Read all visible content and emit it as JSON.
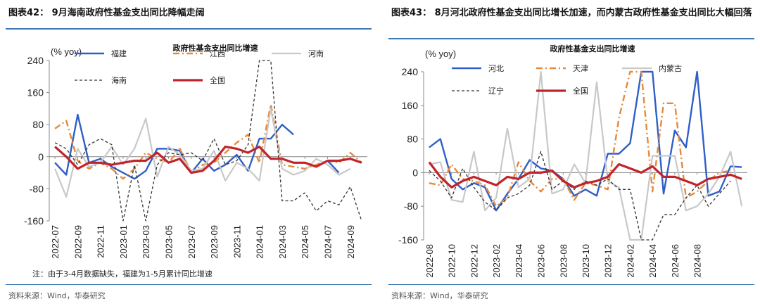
{
  "panels": [
    {
      "figure_title": "图表42：  9月海南政府性基金支出同比降幅走阔",
      "note": "注：由于3-4月数据缺失，福建为1-5月累计同比增速",
      "source": "资料来源：Wind，华泰研究",
      "legend_rows": [
        [
          "福建",
          "江西",
          "河南"
        ],
        [
          "海南",
          "全国"
        ]
      ],
      "chart_data": {
        "type": "line",
        "title": "政府性基金支出同比增速",
        "ylabel": "(% yoy)",
        "ylim": [
          -160,
          240
        ],
        "yticks": [
          -160,
          -80,
          0,
          80,
          160,
          240
        ],
        "x_tick_labels": [
          "2022-07",
          "2022-09",
          "2022-11",
          "2023-01",
          "2023-03",
          "2023-05",
          "2023-07",
          "2023-09",
          "2023-11",
          "2024-01",
          "2024-03",
          "2024-05",
          "2024-07",
          "2024-09"
        ],
        "series": [
          {
            "name": "福建",
            "color": "#2f5fc7",
            "style": "solid",
            "width": 2.4,
            "values": [
              -15,
              -45,
              105,
              -15,
              -5,
              -25,
              -40,
              -55,
              -35,
              20,
              20,
              15,
              -40,
              -5,
              -35,
              -20,
              5,
              -35,
              45,
              45,
              80,
              55,
              null,
              null,
              -10,
              -40,
              null,
              null
            ]
          },
          {
            "name": "江西",
            "color": "#e8893a",
            "style": "dashdot",
            "width": 2.4,
            "values": [
              70,
              90,
              -10,
              -30,
              -15,
              -30,
              -55,
              -30,
              10,
              -5,
              -15,
              20,
              -40,
              -20,
              -15,
              10,
              35,
              55,
              -15,
              130,
              -20,
              -25,
              -30,
              -20,
              -10,
              -15,
              10,
              -15
            ]
          },
          {
            "name": "河南",
            "color": "#c8c8c8",
            "style": "solid",
            "width": 2.2,
            "values": [
              -30,
              -100,
              20,
              -25,
              -15,
              25,
              -20,
              20,
              95,
              -50,
              25,
              5,
              -35,
              -30,
              15,
              -60,
              -15,
              -30,
              -60,
              120,
              -30,
              -45,
              -35,
              -5,
              -20,
              -45,
              -30,
              null
            ]
          },
          {
            "name": "海南",
            "color": "#333333",
            "style": "dashed",
            "width": 1.3,
            "values": [
              35,
              20,
              -20,
              30,
              45,
              30,
              -160,
              -20,
              -160,
              -20,
              10,
              5,
              10,
              -10,
              45,
              -20,
              -10,
              30,
              245,
              245,
              -110,
              -110,
              -90,
              -135,
              -110,
              -120,
              -75,
              -160
            ]
          },
          {
            "name": "全国",
            "color": "#c0242a",
            "style": "solid",
            "width": 3.2,
            "values": [
              25,
              0,
              -30,
              -15,
              -15,
              -20,
              -15,
              -10,
              -10,
              10,
              -15,
              -5,
              -40,
              -35,
              -10,
              25,
              20,
              10,
              25,
              -5,
              -5,
              -15,
              -15,
              -25,
              -10,
              -10,
              -5,
              -15
            ]
          }
        ]
      }
    },
    {
      "figure_title": "图表43：  8月河北政府性基金支出同比增长加速，而内蒙古政府性基金支出同比大幅回落",
      "source": "资料来源：Wind，华泰研究",
      "legend_rows": [
        [
          "河北",
          "天津",
          "内蒙古"
        ],
        [
          "辽宁",
          "全国"
        ]
      ],
      "chart_data": {
        "type": "line",
        "title": "政府性基金支出同比增速",
        "ylabel": "(% yoy)",
        "ylim": [
          -160,
          240
        ],
        "yticks": [
          -160,
          -80,
          0,
          80,
          160,
          240
        ],
        "x_tick_labels": [
          "2022-08",
          "2022-10",
          "2022-12",
          "2023-02",
          "2023-04",
          "2023-06",
          "2023-08",
          "2023-10",
          "2023-12",
          "2024-02",
          "2024-04",
          "2024-06",
          "2024-08"
        ],
        "series": [
          {
            "name": "河北",
            "color": "#2f5fc7",
            "style": "solid",
            "width": 2.4,
            "values": [
              60,
              80,
              -15,
              -40,
              -25,
              -35,
              -90,
              -50,
              -15,
              30,
              10,
              5,
              -15,
              -55,
              -40,
              -55,
              45,
              45,
              70,
              245,
              245,
              -50,
              100,
              60,
              240,
              -55,
              -45,
              15,
              13
            ]
          },
          {
            "name": "天津",
            "color": "#e8893a",
            "style": "dashdot",
            "width": 2.4,
            "values": [
              -25,
              -30,
              20,
              -15,
              -20,
              -30,
              -80,
              -60,
              25,
              -20,
              -45,
              -15,
              -15,
              -65,
              -25,
              -30,
              -40,
              130,
              245,
              245,
              -45,
              165,
              165,
              -60,
              -45,
              -20,
              0,
              5,
              null
            ]
          },
          {
            "name": "内蒙古",
            "color": "#c8c8c8",
            "style": "solid",
            "width": 2.2,
            "values": [
              20,
              25,
              -65,
              -70,
              50,
              -90,
              -60,
              105,
              -35,
              -15,
              245,
              -50,
              -40,
              20,
              -25,
              215,
              -20,
              -35,
              -160,
              -160,
              40,
              40,
              40,
              -90,
              -80,
              -50,
              -10,
              50,
              -80
            ]
          },
          {
            "name": "辽宁",
            "color": "#333333",
            "style": "dashed",
            "width": 1.3,
            "values": [
              5,
              -20,
              -60,
              10,
              -35,
              -70,
              -90,
              -60,
              -50,
              -30,
              50,
              -40,
              -20,
              -40,
              -20,
              -30,
              -15,
              -40,
              -40,
              -160,
              -160,
              -100,
              -100,
              -60,
              -30,
              -80,
              -50,
              -20,
              null
            ]
          },
          {
            "name": "全国",
            "color": "#c0242a",
            "style": "solid",
            "width": 3.2,
            "values": [
              25,
              -10,
              -35,
              -20,
              -10,
              -20,
              -30,
              -10,
              -15,
              0,
              0,
              5,
              -20,
              -35,
              -25,
              -20,
              -10,
              20,
              10,
              0,
              15,
              -10,
              -10,
              -20,
              -30,
              -15,
              -10,
              -5,
              -15
            ]
          }
        ]
      }
    }
  ]
}
